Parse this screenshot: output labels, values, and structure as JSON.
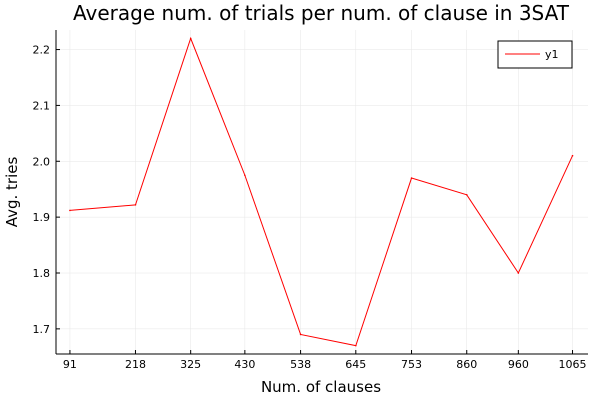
{
  "chart_data": {
    "type": "line",
    "title": "Average num. of trials per num. of clause in 3SAT",
    "xlabel": "Num. of clauses",
    "ylabel": "Avg. tries",
    "x": [
      91,
      218,
      325,
      430,
      538,
      645,
      753,
      860,
      960,
      1065
    ],
    "xticks": [
      "91",
      "218",
      "325",
      "430",
      "538",
      "645",
      "753",
      "860",
      "960",
      "1065"
    ],
    "yticks": [
      "1.7",
      "1.8",
      "1.9",
      "2.0",
      "2.1",
      "2.2"
    ],
    "ylim": [
      1.655,
      2.235
    ],
    "xlim": [
      64,
      1095
    ],
    "grid": true,
    "legend_position": "top-right",
    "series": [
      {
        "name": "y1",
        "color": "#ff0000",
        "values": [
          1.912,
          1.922,
          2.22,
          1.975,
          1.69,
          1.67,
          1.97,
          1.94,
          1.8,
          2.01
        ]
      }
    ]
  }
}
